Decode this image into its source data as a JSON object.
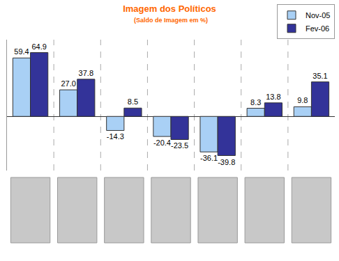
{
  "chart_data": {
    "type": "bar",
    "title": "Imagem dos Políticos",
    "subtitle": "(Saldo de Imagem em %)",
    "categories": [
      null,
      null,
      null,
      null,
      null,
      null,
      null
    ],
    "series": [
      {
        "name": "Nov-05",
        "color": "#a9d0f5",
        "values": [
          59.4,
          27.0,
          -14.3,
          -20.4,
          -36.1,
          8.3,
          9.8
        ],
        "value_labels": [
          "59.4",
          "27.0",
          "-14.3",
          "-20.4",
          "-36.1",
          "8.3",
          "9.8"
        ]
      },
      {
        "name": "Fev-06",
        "color": "#333399",
        "values": [
          64.9,
          37.8,
          8.5,
          -23.5,
          -39.8,
          13.8,
          35.1
        ],
        "value_labels": [
          "64.9",
          "37.8",
          "8.5",
          "-23.5",
          "-39.8",
          "13.8",
          "35.1"
        ]
      }
    ],
    "ylim": [
      -55,
      78
    ],
    "yticks": [
      0
    ],
    "grid": true,
    "legend": "top right",
    "data_labels": true,
    "tick_labels": false
  }
}
